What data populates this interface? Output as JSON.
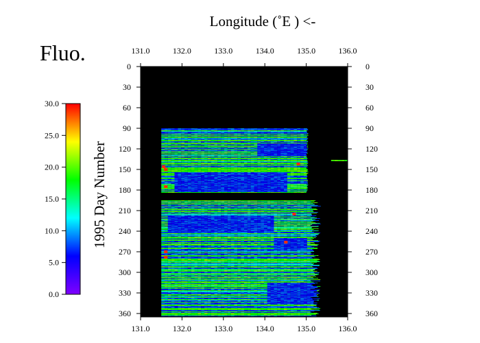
{
  "chart_data": {
    "type": "heatmap",
    "title": "Fluo.",
    "xlabel": "Longitude  (˚E ) <-",
    "ylabel": "1995  Day Number",
    "xlim": [
      131.0,
      136.0
    ],
    "ylim": [
      0,
      365
    ],
    "y_inverted": true,
    "x_ticks": [
      "131.0",
      "132.0",
      "133.0",
      "134.0",
      "135.0",
      "136.0"
    ],
    "y_ticks": [
      "0",
      "30",
      "60",
      "90",
      "120",
      "150",
      "180",
      "210",
      "240",
      "270",
      "300",
      "330",
      "360"
    ],
    "colorbar": {
      "min": 0.0,
      "max": 30.0,
      "ticks": [
        "30.0",
        "25.0",
        "20.0",
        "15.0",
        "10.0",
        "5.0",
        "0.0"
      ],
      "colors": [
        "#7f00ff",
        "#0000ff",
        "#00ffff",
        "#00ff00",
        "#ffff00",
        "#ff0000"
      ]
    },
    "background_color": "#000000",
    "tracks": [
      {
        "day_start": 90,
        "day_end": 183,
        "lon_start": 131.5,
        "lon_end": 135.05,
        "typical_value": 8
      },
      {
        "day_start": 195,
        "day_end": 363,
        "lon_start": 131.5,
        "lon_end": 135.35,
        "typical_value": 8
      },
      {
        "day_start": 136,
        "day_end": 137,
        "lon_start": 135.6,
        "lon_end": 136.0,
        "typical_value": 8
      }
    ],
    "low_value_patches": [
      {
        "day_start": 112,
        "day_end": 130,
        "lon_start": 133.8,
        "lon_end": 135.0
      },
      {
        "day_start": 155,
        "day_end": 182,
        "lon_start": 131.8,
        "lon_end": 134.5
      },
      {
        "day_start": 218,
        "day_end": 240,
        "lon_start": 131.6,
        "lon_end": 134.2
      },
      {
        "day_start": 250,
        "day_end": 265,
        "lon_start": 134.2,
        "lon_end": 135.0
      },
      {
        "day_start": 315,
        "day_end": 345,
        "lon_start": 134.0,
        "lon_end": 135.2
      }
    ],
    "high_value_patches": [
      {
        "day": 146,
        "lon": 131.55
      },
      {
        "day": 150,
        "lon": 131.6
      },
      {
        "day": 175,
        "lon": 131.6
      },
      {
        "day": 142,
        "lon": 134.8
      },
      {
        "day": 215,
        "lon": 134.7
      },
      {
        "day": 256,
        "lon": 134.5
      },
      {
        "day": 270,
        "lon": 131.6
      },
      {
        "day": 278,
        "lon": 131.6
      }
    ]
  }
}
